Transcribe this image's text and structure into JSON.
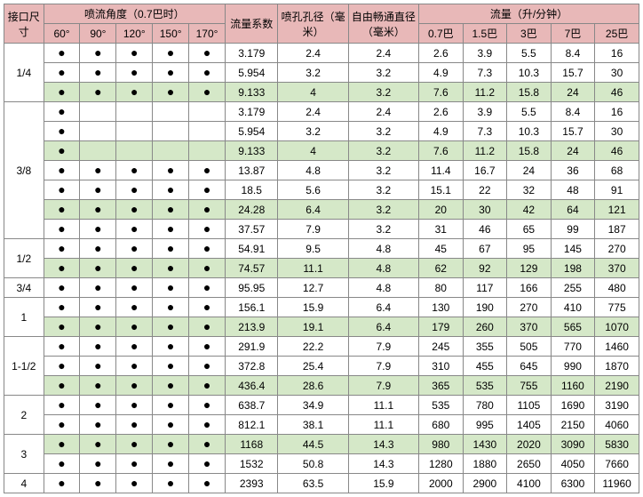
{
  "h": {
    "size": "接口尺寸",
    "angle": "喷流角度（0.7巴时）",
    "coef": "流量系数",
    "bore": "喷孔孔径（毫米）",
    "free": "自由畅通直径（毫米）",
    "flow": "流量（升/分钟）",
    "angles": [
      "60°",
      "90°",
      "120°",
      "150°",
      "170°"
    ],
    "flows": [
      "0.7巴",
      "1.5巴",
      "3巴",
      "7巴",
      "25巴"
    ]
  },
  "groups": [
    {
      "size": "1/4",
      "rows": [
        {
          "a": [
            1,
            1,
            1,
            1,
            1
          ],
          "c": "3.179",
          "b": "2.4",
          "f": "2.4",
          "q": [
            "2.6",
            "3.9",
            "5.5",
            "8.4",
            "16"
          ]
        },
        {
          "a": [
            1,
            1,
            1,
            1,
            1
          ],
          "c": "5.954",
          "b": "3.2",
          "f": "3.2",
          "q": [
            "4.9",
            "7.3",
            "10.3",
            "15.7",
            "30"
          ]
        },
        {
          "a": [
            1,
            1,
            1,
            1,
            1
          ],
          "c": "9.133",
          "b": "4",
          "f": "3.2",
          "q": [
            "7.6",
            "11.2",
            "15.8",
            "24",
            "46"
          ],
          "hl": 1
        }
      ]
    },
    {
      "size": "3/8",
      "rows": [
        {
          "a": [
            1,
            0,
            0,
            0,
            0
          ],
          "c": "3.179",
          "b": "2.4",
          "f": "2.4",
          "q": [
            "2.6",
            "3.9",
            "5.5",
            "8.4",
            "16"
          ]
        },
        {
          "a": [
            1,
            0,
            0,
            0,
            0
          ],
          "c": "5.954",
          "b": "3.2",
          "f": "3.2",
          "q": [
            "4.9",
            "7.3",
            "10.3",
            "15.7",
            "30"
          ]
        },
        {
          "a": [
            1,
            0,
            0,
            0,
            0
          ],
          "c": "9.133",
          "b": "4",
          "f": "3.2",
          "q": [
            "7.6",
            "11.2",
            "15.8",
            "24",
            "46"
          ],
          "hl": 1
        },
        {
          "a": [
            1,
            1,
            1,
            1,
            1
          ],
          "c": "13.87",
          "b": "4.8",
          "f": "3.2",
          "q": [
            "11.4",
            "16.7",
            "24",
            "36",
            "68"
          ]
        },
        {
          "a": [
            1,
            1,
            1,
            1,
            1
          ],
          "c": "18.5",
          "b": "5.6",
          "f": "3.2",
          "q": [
            "15.1",
            "22",
            "32",
            "48",
            "91"
          ]
        },
        {
          "a": [
            1,
            1,
            1,
            1,
            1
          ],
          "c": "24.28",
          "b": "6.4",
          "f": "3.2",
          "q": [
            "20",
            "30",
            "42",
            "64",
            "121"
          ],
          "hl": 1
        },
        {
          "a": [
            1,
            1,
            1,
            1,
            1
          ],
          "c": "37.57",
          "b": "7.9",
          "f": "3.2",
          "q": [
            "31",
            "46",
            "65",
            "99",
            "187"
          ]
        }
      ]
    },
    {
      "size": "1/2",
      "rows": [
        {
          "a": [
            1,
            1,
            1,
            1,
            1
          ],
          "c": "54.91",
          "b": "9.5",
          "f": "4.8",
          "q": [
            "45",
            "67",
            "95",
            "145",
            "270"
          ]
        },
        {
          "a": [
            1,
            1,
            1,
            1,
            1
          ],
          "c": "74.57",
          "b": "11.1",
          "f": "4.8",
          "q": [
            "62",
            "92",
            "129",
            "198",
            "370"
          ],
          "hl": 1
        }
      ]
    },
    {
      "size": "3/4",
      "rows": [
        {
          "a": [
            1,
            1,
            1,
            1,
            1
          ],
          "c": "95.95",
          "b": "12.7",
          "f": "4.8",
          "q": [
            "80",
            "117",
            "166",
            "255",
            "480"
          ]
        }
      ]
    },
    {
      "size": "1",
      "rows": [
        {
          "a": [
            1,
            1,
            1,
            1,
            1
          ],
          "c": "156.1",
          "b": "15.9",
          "f": "6.4",
          "q": [
            "130",
            "190",
            "270",
            "410",
            "775"
          ]
        },
        {
          "a": [
            1,
            1,
            1,
            1,
            1
          ],
          "c": "213.9",
          "b": "19.1",
          "f": "6.4",
          "q": [
            "179",
            "260",
            "370",
            "565",
            "1070"
          ],
          "hl": 1
        }
      ]
    },
    {
      "size": "1-1/2",
      "rows": [
        {
          "a": [
            1,
            1,
            1,
            1,
            1
          ],
          "c": "291.9",
          "b": "22.2",
          "f": "7.9",
          "q": [
            "245",
            "355",
            "505",
            "770",
            "1460"
          ]
        },
        {
          "a": [
            1,
            1,
            1,
            1,
            1
          ],
          "c": "372.8",
          "b": "25.4",
          "f": "7.9",
          "q": [
            "310",
            "455",
            "645",
            "990",
            "1870"
          ]
        },
        {
          "a": [
            1,
            1,
            1,
            1,
            1
          ],
          "c": "436.4",
          "b": "28.6",
          "f": "7.9",
          "q": [
            "365",
            "535",
            "755",
            "1160",
            "2190"
          ],
          "hl": 1
        }
      ]
    },
    {
      "size": "2",
      "rows": [
        {
          "a": [
            1,
            1,
            1,
            1,
            1
          ],
          "c": "638.7",
          "b": "34.9",
          "f": "11.1",
          "q": [
            "535",
            "780",
            "1105",
            "1690",
            "3190"
          ]
        },
        {
          "a": [
            1,
            1,
            1,
            1,
            1
          ],
          "c": "812.1",
          "b": "38.1",
          "f": "11.1",
          "q": [
            "680",
            "995",
            "1405",
            "2150",
            "4060"
          ]
        }
      ]
    },
    {
      "size": "3",
      "rows": [
        {
          "a": [
            1,
            1,
            1,
            1,
            1
          ],
          "c": "1168",
          "b": "44.5",
          "f": "14.3",
          "q": [
            "980",
            "1430",
            "2020",
            "3090",
            "5830"
          ],
          "hl": 1
        },
        {
          "a": [
            1,
            1,
            1,
            1,
            1
          ],
          "c": "1532",
          "b": "50.8",
          "f": "14.3",
          "q": [
            "1280",
            "1880",
            "2650",
            "4050",
            "7660"
          ]
        }
      ]
    },
    {
      "size": "4",
      "rows": [
        {
          "a": [
            1,
            1,
            1,
            1,
            1
          ],
          "c": "2393",
          "b": "63.5",
          "f": "15.9",
          "q": [
            "2000",
            "2900",
            "4100",
            "6300",
            "11960"
          ]
        }
      ]
    }
  ]
}
